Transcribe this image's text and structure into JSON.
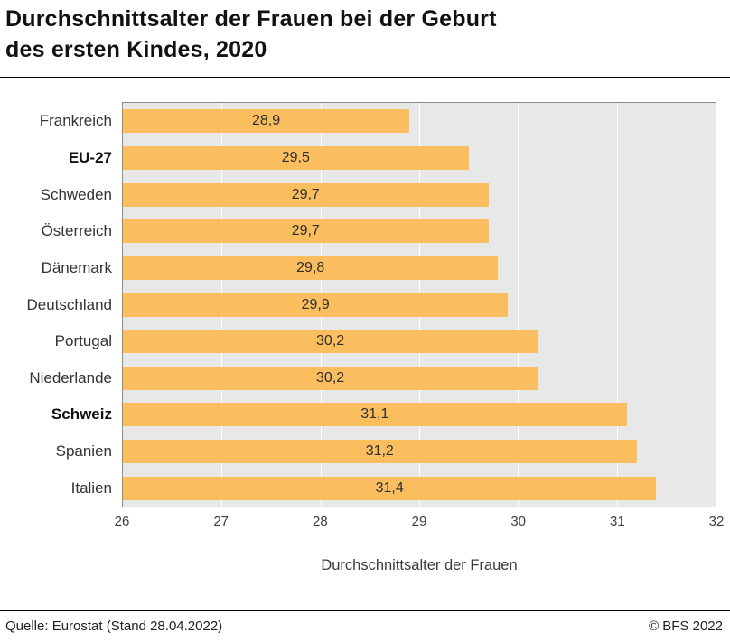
{
  "title": {
    "line1": "Durchschnittsalter der Frauen bei der Geburt",
    "line2": "des ersten Kindes, 2020"
  },
  "chart_data": {
    "type": "bar",
    "orientation": "horizontal",
    "title": "Durchschnittsalter der Frauen bei der Geburt des ersten Kindes, 2020",
    "categories": [
      "Frankreich",
      "EU-27",
      "Schweden",
      "Österreich",
      "Dänemark",
      "Deutschland",
      "Portugal",
      "Niederlande",
      "Schweiz",
      "Spanien",
      "Italien"
    ],
    "values": [
      28.9,
      29.5,
      29.7,
      29.7,
      29.8,
      29.9,
      30.2,
      30.2,
      31.1,
      31.2,
      31.4
    ],
    "value_labels": [
      "28,9",
      "29,5",
      "29,7",
      "29,7",
      "29,8",
      "29,9",
      "30,2",
      "30,2",
      "31,1",
      "31,2",
      "31,4"
    ],
    "bold_categories": [
      "EU-27",
      "Schweiz"
    ],
    "xlabel": "Durchschnittsalter der Frauen",
    "xlim": [
      26,
      32
    ],
    "xticks": [
      26,
      27,
      28,
      29,
      30,
      31,
      32
    ],
    "grid": true,
    "bar_color": "#FBBE5E",
    "plot_background": "#E8E8E8",
    "gridline_color": "#FFFFFF",
    "legend": "none"
  },
  "footer": {
    "source": "Quelle: Eurostat (Stand 28.04.2022)",
    "copyright": "© BFS 2022"
  }
}
